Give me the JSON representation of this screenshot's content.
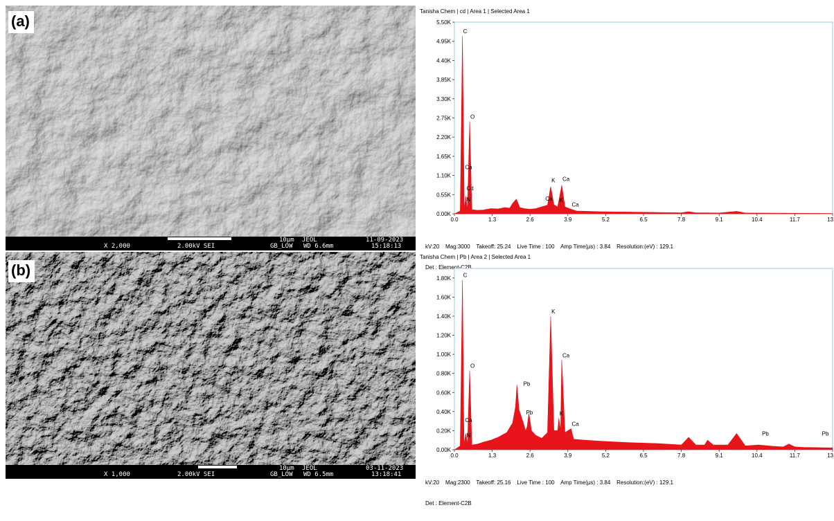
{
  "panels": [
    {
      "label": "(a)",
      "sem": {
        "magnification": "X 2,000",
        "voltage": "2.00kV SEI",
        "scale": "10µm",
        "brand": "JEOL",
        "mode": "GB_LOW",
        "wd": "WD 6.6mm",
        "date": "11-09-2023",
        "time": "15:18:13"
      },
      "eds": {
        "header": "Tanisha Chem | cd | Area 1 | Selected Area 1",
        "footer_line1": "kV:20    Mag:3000    Takeoff: 25.24    Live Time : 100    Amp Time(µs) : 3.84    Resolution:(eV) : 129.1",
        "footer_line2": "Det : Element-C2B"
      }
    },
    {
      "label": "(b)",
      "sem": {
        "magnification": "X 1,000",
        "voltage": "2.00kV SEI",
        "scale": "10µm",
        "brand": "JEOL",
        "mode": "GB_LOW",
        "wd": "WD 6.5mm",
        "date": "03-11-2023",
        "time": "13:18:41"
      },
      "eds": {
        "header": "Tanisha Chem | Pb | Area 2 | Selected Area 1",
        "footer_line1": "kV:20    Mag:2300    Takeoff: 25.16    Live Time : 100    Amp Time(µs) : 3.84    Resolution:(eV) : 129.1",
        "footer_line2": "Det : Element-C2B"
      }
    }
  ],
  "chart_data": [
    {
      "type": "area",
      "x_ticks": [
        "0.0",
        "1.3",
        "2.6",
        "3.9",
        "5.2",
        "6.5",
        "7.8",
        "9.1",
        "10.4",
        "11.7",
        "13.0"
      ],
      "y_ticks": [
        "0.00K",
        "0.55K",
        "1.10K",
        "1.65K",
        "2.20K",
        "2.75K",
        "3.30K",
        "3.85K",
        "4.40K",
        "4.95K",
        "5.50K"
      ],
      "xlim": [
        0,
        13.0
      ],
      "ylim": [
        0,
        5500
      ],
      "fill_color": "#e8141b",
      "series_points": [
        [
          0.0,
          0
        ],
        [
          0.2,
          80
        ],
        [
          0.277,
          5100
        ],
        [
          0.34,
          150
        ],
        [
          0.392,
          500
        ],
        [
          0.45,
          120
        ],
        [
          0.525,
          2650
        ],
        [
          0.6,
          120
        ],
        [
          0.8,
          100
        ],
        [
          1.0,
          110
        ],
        [
          1.25,
          150
        ],
        [
          1.5,
          140
        ],
        [
          1.74,
          180
        ],
        [
          1.9,
          160
        ],
        [
          2.0,
          300
        ],
        [
          2.13,
          420
        ],
        [
          2.25,
          180
        ],
        [
          2.4,
          150
        ],
        [
          2.6,
          130
        ],
        [
          2.8,
          150
        ],
        [
          3.0,
          200
        ],
        [
          3.2,
          250
        ],
        [
          3.31,
          780
        ],
        [
          3.42,
          260
        ],
        [
          3.55,
          200
        ],
        [
          3.69,
          820
        ],
        [
          3.8,
          200
        ],
        [
          4.01,
          130
        ],
        [
          4.2,
          80
        ],
        [
          5.0,
          60
        ],
        [
          6.0,
          50
        ],
        [
          7.0,
          40
        ],
        [
          7.8,
          30
        ],
        [
          8.05,
          60
        ],
        [
          8.3,
          30
        ],
        [
          9.1,
          25
        ],
        [
          9.7,
          70
        ],
        [
          10.0,
          25
        ],
        [
          11.0,
          20
        ],
        [
          12.0,
          15
        ],
        [
          13.0,
          10
        ]
      ],
      "peak_labels": [
        {
          "text": "C",
          "x": 0.277,
          "y": 5100
        },
        {
          "text": "O",
          "x": 0.525,
          "y": 2650
        },
        {
          "text": "Ca",
          "x": 0.341,
          "y": 1200
        },
        {
          "text": "Cd",
          "x": 0.392,
          "y": 600
        },
        {
          "text": "N",
          "x": 0.392,
          "y": 280
        },
        {
          "text": "K",
          "x": 3.313,
          "y": 820
        },
        {
          "text": "Ca",
          "x": 3.69,
          "y": 860
        },
        {
          "text": "Ca",
          "x": 3.1,
          "y": 300
        },
        {
          "text": "K",
          "x": 3.59,
          "y": 260
        },
        {
          "text": "Ca",
          "x": 4.013,
          "y": 130
        }
      ]
    },
    {
      "type": "area",
      "x_ticks": [
        "0.0",
        "1.3",
        "2.6",
        "3.9",
        "5.2",
        "6.5",
        "7.8",
        "9.1",
        "10.4",
        "11.7",
        "13.0"
      ],
      "y_ticks": [
        "0.00K",
        "0.20K",
        "0.40K",
        "0.60K",
        "0.80K",
        "1.00K",
        "1.20K",
        "1.40K",
        "1.60K",
        "1.80K"
      ],
      "xlim": [
        0,
        13.0
      ],
      "ylim": [
        0,
        1900
      ],
      "fill_color": "#e8141b",
      "series_points": [
        [
          0.0,
          0
        ],
        [
          0.2,
          40
        ],
        [
          0.277,
          1780
        ],
        [
          0.33,
          60
        ],
        [
          0.392,
          170
        ],
        [
          0.45,
          60
        ],
        [
          0.525,
          830
        ],
        [
          0.6,
          50
        ],
        [
          0.8,
          60
        ],
        [
          1.0,
          80
        ],
        [
          1.25,
          100
        ],
        [
          1.5,
          130
        ],
        [
          1.8,
          180
        ],
        [
          2.0,
          280
        ],
        [
          2.1,
          450
        ],
        [
          2.15,
          680
        ],
        [
          2.22,
          420
        ],
        [
          2.35,
          300
        ],
        [
          2.45,
          200
        ],
        [
          2.5,
          240
        ],
        [
          2.56,
          380
        ],
        [
          2.65,
          200
        ],
        [
          2.8,
          150
        ],
        [
          3.0,
          120
        ],
        [
          3.2,
          180
        ],
        [
          3.31,
          1400
        ],
        [
          3.42,
          200
        ],
        [
          3.55,
          200
        ],
        [
          3.59,
          330
        ],
        [
          3.65,
          200
        ],
        [
          3.69,
          940
        ],
        [
          3.8,
          180
        ],
        [
          4.01,
          220
        ],
        [
          4.1,
          110
        ],
        [
          4.5,
          100
        ],
        [
          5.0,
          90
        ],
        [
          6.0,
          75
        ],
        [
          7.0,
          65
        ],
        [
          7.8,
          50
        ],
        [
          8.05,
          130
        ],
        [
          8.3,
          50
        ],
        [
          8.6,
          50
        ],
        [
          8.7,
          100
        ],
        [
          8.9,
          50
        ],
        [
          9.4,
          50
        ],
        [
          9.7,
          170
        ],
        [
          10.0,
          40
        ],
        [
          10.45,
          50
        ],
        [
          11.0,
          35
        ],
        [
          11.3,
          30
        ],
        [
          11.5,
          60
        ],
        [
          11.7,
          30
        ],
        [
          12.0,
          25
        ],
        [
          13.0,
          20
        ]
      ],
      "peak_labels": [
        {
          "text": "C",
          "x": 0.277,
          "y": 1780
        },
        {
          "text": "O",
          "x": 0.525,
          "y": 830
        },
        {
          "text": "Ca",
          "x": 0.341,
          "y": 260
        },
        {
          "text": "N",
          "x": 0.392,
          "y": 100
        },
        {
          "text": "K",
          "x": 3.313,
          "y": 1400
        },
        {
          "text": "Ca",
          "x": 3.69,
          "y": 940
        },
        {
          "text": "Pb",
          "x": 2.345,
          "y": 640
        },
        {
          "text": "Pb",
          "x": 2.44,
          "y": 340
        },
        {
          "text": "K",
          "x": 3.59,
          "y": 330
        },
        {
          "text": "Ca",
          "x": 4.013,
          "y": 220
        },
        {
          "text": "Pb",
          "x": 10.55,
          "y": 120
        },
        {
          "text": "Pb",
          "x": 12.61,
          "y": 120
        }
      ]
    }
  ]
}
